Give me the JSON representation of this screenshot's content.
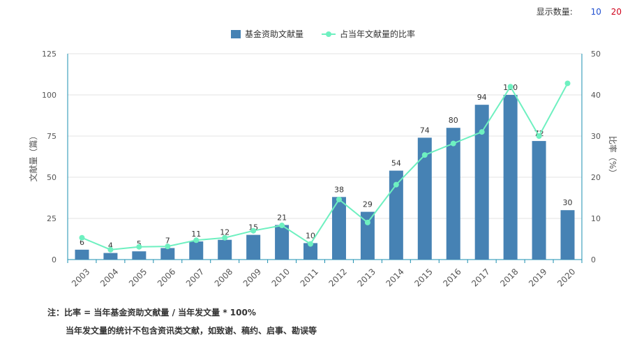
{
  "controls": {
    "display_count_label": "显示数量:",
    "options": [
      "10",
      "20"
    ],
    "option_colors": [
      "#1f4fd0",
      "#d0021b"
    ]
  },
  "chart_data": {
    "type": "bar",
    "categories": [
      "2003",
      "2004",
      "2005",
      "2006",
      "2007",
      "2008",
      "2009",
      "2010",
      "2011",
      "2012",
      "2013",
      "2014",
      "2015",
      "2016",
      "2017",
      "2018",
      "2019",
      "2020"
    ],
    "series": [
      {
        "name": "基金资助文献量",
        "type": "bar",
        "axis": "left",
        "color": "#4682b4",
        "values": [
          6,
          4,
          5,
          7,
          11,
          12,
          15,
          21,
          10,
          38,
          29,
          54,
          74,
          80,
          94,
          100,
          72,
          30
        ]
      },
      {
        "name": "占当年文献量的比率",
        "type": "line",
        "axis": "right",
        "color": "#6ef0c0",
        "values": [
          5.3,
          2.4,
          3.1,
          3.2,
          4.7,
          5.3,
          7.0,
          8.3,
          3.8,
          14.6,
          9.0,
          18.2,
          25.4,
          28.2,
          31.0,
          42.0,
          30.0,
          42.8
        ]
      }
    ],
    "ylabel_left": "文献量（篇）",
    "ylabel_right": "比率（%）",
    "ylim_left": [
      0,
      125
    ],
    "ylim_right": [
      0,
      50
    ],
    "yticks_left": [
      0,
      25,
      50,
      75,
      100,
      125
    ],
    "yticks_right": [
      0,
      10,
      20,
      30,
      40,
      50
    ],
    "grid": true,
    "legend_position": "top-center"
  },
  "notes": {
    "line1": "注：比率 = 当年基金资助文献量 / 当年发文量 * 100%",
    "line2": "当年发文量的统计不包含资讯类文献，如致谢、稿约、启事、勘误等"
  }
}
